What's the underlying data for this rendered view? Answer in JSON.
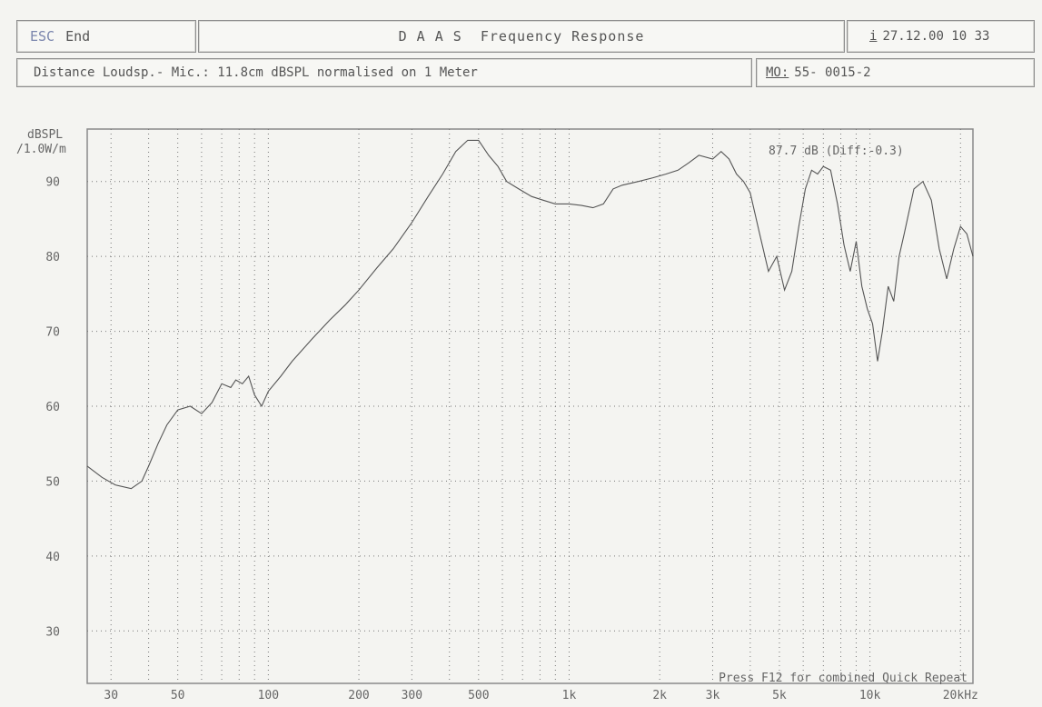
{
  "header": {
    "esc_key": "ESC",
    "esc_label": "End",
    "title": "D A A S  Frequency Response",
    "info_icon": "i",
    "datetime": "27.12.00 10 33"
  },
  "subheader": {
    "distance_text": "Distance Loudsp.- Mic.: 11.8cm dBSPL normalised on 1 Meter",
    "mo_key": "MO:",
    "mo_value": "55- 0015-2"
  },
  "chart_data": {
    "type": "line",
    "ylabel_line1": "dBSPL",
    "ylabel_line2": "/1.0W/m",
    "xscale": "log",
    "xlim": [
      25,
      22000
    ],
    "ylim": [
      23,
      97
    ],
    "yticks": [
      30,
      40,
      50,
      60,
      70,
      80,
      90
    ],
    "xticks": [
      {
        "value": 30,
        "label": "30"
      },
      {
        "value": 50,
        "label": "50"
      },
      {
        "value": 100,
        "label": "100"
      },
      {
        "value": 200,
        "label": "200"
      },
      {
        "value": 300,
        "label": "300"
      },
      {
        "value": 500,
        "label": "500"
      },
      {
        "value": 1000,
        "label": "1k"
      },
      {
        "value": 2000,
        "label": "2k"
      },
      {
        "value": 3000,
        "label": "3k"
      },
      {
        "value": 5000,
        "label": "5k"
      },
      {
        "value": 10000,
        "label": "10k"
      },
      {
        "value": 20000,
        "label": "20kHz"
      }
    ],
    "annotation": "87.7 dB (Diff:-0.3)",
    "footer_note": "Press F12 for combined Quick Repeat",
    "grid": true,
    "series": [
      {
        "x": [
          25,
          28,
          31,
          35,
          38,
          40,
          43,
          46,
          50,
          55,
          60,
          65,
          70,
          75,
          78,
          82,
          86,
          90,
          95,
          100,
          110,
          120,
          140,
          160,
          180,
          200,
          230,
          260,
          300,
          340,
          380,
          420,
          460,
          500,
          540,
          580,
          620,
          680,
          750,
          820,
          900,
          1000,
          1100,
          1200,
          1300,
          1400,
          1500,
          1700,
          1900,
          2100,
          2300,
          2500,
          2700,
          3000,
          3200,
          3400,
          3600,
          3800,
          4000,
          4300,
          4600,
          4900,
          5200,
          5500,
          5800,
          6100,
          6400,
          6700,
          7000,
          7400,
          7800,
          8200,
          8600,
          9000,
          9400,
          9800,
          10200,
          10600,
          11000,
          11500,
          12000,
          12500,
          13000,
          14000,
          15000,
          16000,
          17000,
          18000,
          19000,
          20000,
          21000,
          22000
        ],
        "y": [
          52,
          50.5,
          49.5,
          49,
          50,
          52,
          55,
          57.5,
          59.5,
          60,
          59,
          60.5,
          63,
          62.5,
          63.5,
          63,
          64,
          61.5,
          60,
          62,
          64,
          66,
          69,
          71.5,
          73.5,
          75.5,
          78.5,
          81,
          84.5,
          88,
          91,
          94,
          95.5,
          95.5,
          93.5,
          92,
          90,
          89,
          88,
          87.5,
          87,
          87,
          86.8,
          86.5,
          87,
          89,
          89.5,
          90,
          90.5,
          91,
          91.5,
          92.5,
          93.5,
          93,
          94,
          93,
          91,
          90,
          88.5,
          83,
          78,
          80,
          75.5,
          78,
          84,
          89,
          91.5,
          91,
          92,
          91.5,
          87,
          81.5,
          78,
          82,
          76,
          73,
          71,
          66,
          70,
          76,
          74,
          80,
          83,
          89,
          90,
          87.5,
          81,
          77,
          81,
          84,
          83,
          80
        ]
      }
    ]
  }
}
